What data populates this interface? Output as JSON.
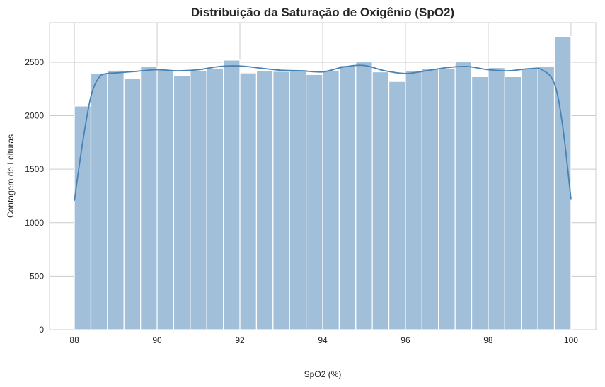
{
  "chart_data": {
    "type": "bar",
    "title": "Distribuição da Saturação de Oxigênio (SpO2)",
    "xlabel": "SpO2 (%)",
    "ylabel": "Contagem de Leituras",
    "xlim": [
      87.4,
      100.6
    ],
    "ylim": [
      0,
      2870
    ],
    "x_ticks": [
      88,
      90,
      92,
      94,
      96,
      98,
      100
    ],
    "y_ticks": [
      0,
      500,
      1000,
      1500,
      2000,
      2500
    ],
    "grid": true,
    "bins": {
      "start": 88,
      "end": 100,
      "edges_note": "30 equal-width bins",
      "counts": [
        2090,
        2395,
        2425,
        2350,
        2460,
        2430,
        2375,
        2425,
        2445,
        2520,
        2400,
        2420,
        2415,
        2420,
        2385,
        2425,
        2470,
        2510,
        2410,
        2320,
        2420,
        2440,
        2440,
        2505,
        2365,
        2450,
        2365,
        2445,
        2460,
        2740
      ]
    },
    "kde": {
      "x": [
        88.0,
        88.2,
        88.4,
        88.6,
        88.8,
        89.0,
        89.5,
        90.0,
        90.5,
        91.0,
        91.5,
        92.0,
        92.5,
        93.0,
        93.5,
        94.0,
        94.5,
        95.0,
        95.5,
        96.0,
        96.5,
        97.0,
        97.5,
        98.0,
        98.5,
        99.0,
        99.3,
        99.6,
        99.8,
        100.0
      ],
      "y": [
        1205,
        1750,
        2180,
        2360,
        2395,
        2400,
        2415,
        2430,
        2420,
        2430,
        2460,
        2465,
        2445,
        2425,
        2420,
        2410,
        2455,
        2470,
        2420,
        2395,
        2420,
        2450,
        2460,
        2430,
        2420,
        2440,
        2430,
        2300,
        1900,
        1220
      ]
    },
    "colors": {
      "bar_fill": "#a2bfd9",
      "bar_edge": "#ffffff",
      "kde_line": "#4682b4",
      "grid": "#cccccc",
      "axes_edge": "#cccccc"
    }
  }
}
